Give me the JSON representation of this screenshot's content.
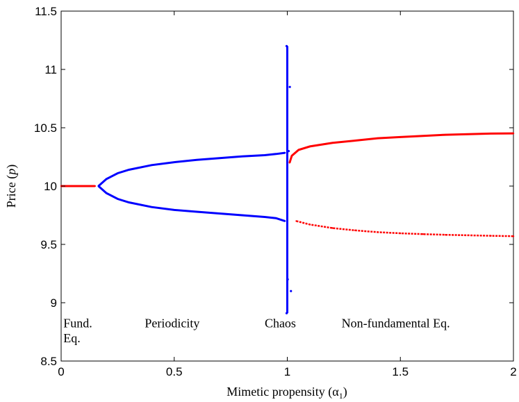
{
  "chart_data": {
    "type": "scatter",
    "title": "",
    "xlabel": "Mimetic propensity (α",
    "xlabel_sub": "1",
    "xlabel_close": ")",
    "ylabel": "Price (",
    "ylabel_var": "p",
    "ylabel_close": ")",
    "xlim": [
      0,
      2
    ],
    "ylim": [
      8.5,
      11.5
    ],
    "xticks": [
      0,
      0.5,
      1,
      1.5,
      2
    ],
    "xtick_labels": [
      "0",
      "0.5",
      "1",
      "1.5",
      "2"
    ],
    "yticks": [
      8.5,
      9,
      9.5,
      10,
      10.5,
      11,
      11.5
    ],
    "ytick_labels": [
      "8.5",
      "9",
      "9.5",
      "10",
      "10.5",
      "11",
      "11.5"
    ],
    "grid": false,
    "legend": "none",
    "annotations": [
      {
        "text": "Fund.",
        "x": 0.01,
        "y": 8.79
      },
      {
        "text": "Eq.",
        "x": 0.01,
        "y": 8.66
      },
      {
        "text": "Periodicity",
        "x": 0.37,
        "y": 8.79
      },
      {
        "text": "Chaos",
        "x": 0.9,
        "y": 8.79
      },
      {
        "text": "Non-fundamental Eq.",
        "x": 1.24,
        "y": 8.79
      }
    ],
    "series": [
      {
        "color": "#ff0000",
        "x": [
          0.0,
          0.05,
          0.1,
          0.15
        ],
        "y": [
          10.0,
          10.0,
          10.0,
          10.0
        ]
      },
      {
        "color": "#0000ff",
        "x": [
          0.165,
          0.2,
          0.25,
          0.3,
          0.4,
          0.5,
          0.6,
          0.7,
          0.8,
          0.9,
          0.95,
          0.99
        ],
        "y": [
          10.0,
          10.06,
          10.11,
          10.14,
          10.18,
          10.205,
          10.225,
          10.24,
          10.255,
          10.265,
          10.275,
          10.285
        ]
      },
      {
        "color": "#0000ff",
        "x": [
          0.165,
          0.2,
          0.25,
          0.3,
          0.4,
          0.5,
          0.6,
          0.7,
          0.8,
          0.9,
          0.95,
          0.99
        ],
        "y": [
          10.0,
          9.94,
          9.89,
          9.86,
          9.82,
          9.795,
          9.78,
          9.765,
          9.75,
          9.735,
          9.725,
          9.7
        ]
      },
      {
        "color": "#0000ff",
        "x": [
          1.0,
          1.0,
          1.0,
          1.005,
          1.005,
          1.01
        ],
        "y": [
          11.2,
          10.3,
          8.91,
          10.85,
          9.2,
          9.1
        ]
      },
      {
        "color": "#ff0000",
        "x": [
          1.01,
          1.02,
          1.05,
          1.1,
          1.2,
          1.3,
          1.4,
          1.5,
          1.6,
          1.7,
          1.8,
          1.9,
          2.0
        ],
        "y": [
          10.2,
          10.26,
          10.31,
          10.34,
          10.37,
          10.39,
          10.41,
          10.42,
          10.43,
          10.44,
          10.445,
          10.45,
          10.452
        ]
      },
      {
        "color": "#ff0000",
        "x": [
          1.04,
          1.1,
          1.2,
          1.3,
          1.4,
          1.5,
          1.6,
          1.7,
          1.8,
          1.9,
          2.0
        ],
        "y": [
          9.7,
          9.67,
          9.64,
          9.62,
          9.605,
          9.595,
          9.588,
          9.582,
          9.578,
          9.574,
          9.57
        ]
      }
    ]
  }
}
